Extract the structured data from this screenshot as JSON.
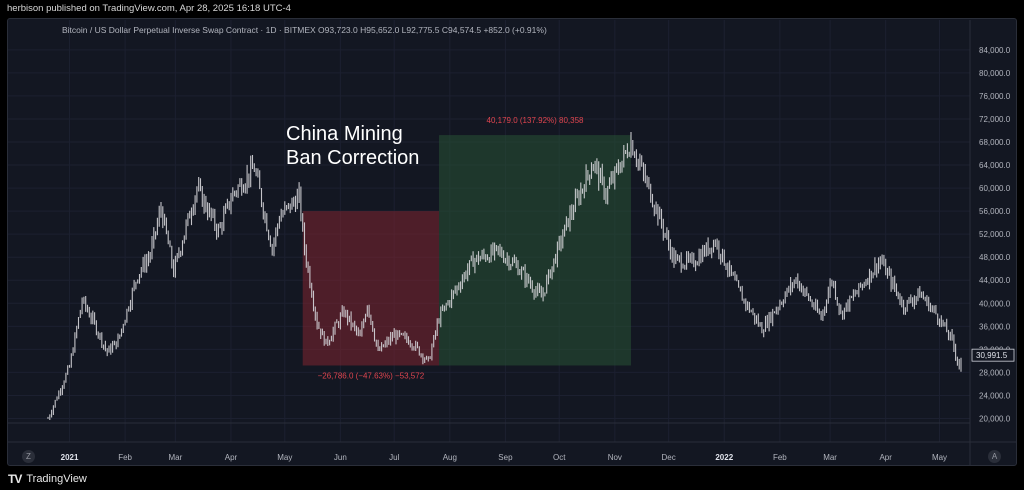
{
  "header": {
    "published_text": "herbison published on TradingView.com, Apr 28, 2025 16:18 UTC-4"
  },
  "legend": {
    "text": "Bitcoin / US Dollar Perpetual Inverse Swap Contract · 1D · BITMEX  O93,723.0  H95,652.0  L92,775.5  C94,574.5  +852.0 (+0.91%)"
  },
  "footer": {
    "brand": "TradingView",
    "logo_mark": "TV",
    "left_button": "Z",
    "right_button": "A"
  },
  "colors": {
    "background": "#131722",
    "candle": "#d4d4d8",
    "bear_zone": "rgba(128,36,48,0.55)",
    "bull_zone": "rgba(40,82,52,0.55)",
    "zone_label": "#e0454f",
    "axis_text": "#b2b5be"
  },
  "chart_data": {
    "type": "line",
    "title": "",
    "annotation": "China Mining\nBan Correction",
    "xlabel": "",
    "ylabel": "",
    "ylim": [
      18000,
      86000
    ],
    "y_ticks": [
      "20,000.0",
      "24,000.0",
      "28,000.0",
      "32,000.0",
      "36,000.0",
      "40,000.0",
      "44,000.0",
      "48,000.0",
      "52,000.0",
      "56,000.0",
      "60,000.0",
      "64,000.0",
      "68,000.0",
      "72,000.0",
      "76,000.0",
      "80,000.0",
      "84,000.0"
    ],
    "x_ticks": [
      {
        "label": "2021",
        "date": "2021-01-01",
        "bold": true
      },
      {
        "label": "Feb",
        "date": "2021-02-01"
      },
      {
        "label": "Mar",
        "date": "2021-03-01"
      },
      {
        "label": "Apr",
        "date": "2021-04-01"
      },
      {
        "label": "May",
        "date": "2021-05-01"
      },
      {
        "label": "Jun",
        "date": "2021-06-01"
      },
      {
        "label": "Jul",
        "date": "2021-07-01"
      },
      {
        "label": "Aug",
        "date": "2021-08-01"
      },
      {
        "label": "Sep",
        "date": "2021-09-01"
      },
      {
        "label": "Oct",
        "date": "2021-10-01"
      },
      {
        "label": "Nov",
        "date": "2021-11-01"
      },
      {
        "label": "Dec",
        "date": "2021-12-01"
      },
      {
        "label": "2022",
        "date": "2022-01-01",
        "bold": true
      },
      {
        "label": "Feb",
        "date": "2022-02-01"
      },
      {
        "label": "Mar",
        "date": "2022-03-01"
      },
      {
        "label": "Apr",
        "date": "2022-04-01"
      },
      {
        "label": "May",
        "date": "2022-05-01"
      }
    ],
    "x_range": [
      "2020-12-20",
      "2022-05-18"
    ],
    "last_price_label": "30,991.5",
    "series": [
      {
        "points": [
          [
            "2020-12-20",
            20000
          ],
          [
            "2021-01-01",
            29000
          ],
          [
            "2021-01-08",
            40500
          ],
          [
            "2021-01-14",
            37000
          ],
          [
            "2021-01-22",
            31500
          ],
          [
            "2021-01-28",
            33500
          ],
          [
            "2021-02-08",
            45000
          ],
          [
            "2021-02-15",
            48500
          ],
          [
            "2021-02-21",
            56500
          ],
          [
            "2021-02-28",
            45500
          ],
          [
            "2021-03-13",
            60000
          ],
          [
            "2021-03-25",
            52500
          ],
          [
            "2021-04-02",
            59000
          ],
          [
            "2021-04-14",
            63500
          ],
          [
            "2021-04-24",
            49500
          ],
          [
            "2021-04-28",
            55000
          ],
          [
            "2021-05-09",
            58500
          ],
          [
            "2021-05-12",
            49500
          ],
          [
            "2021-05-19",
            36500
          ],
          [
            "2021-05-24",
            33000
          ],
          [
            "2021-06-03",
            38500
          ],
          [
            "2021-06-12",
            34000
          ],
          [
            "2021-06-16",
            40000
          ],
          [
            "2021-06-22",
            31500
          ],
          [
            "2021-07-01",
            34500
          ],
          [
            "2021-07-10",
            33500
          ],
          [
            "2021-07-20",
            29800
          ],
          [
            "2021-07-26",
            37500
          ],
          [
            "2021-08-14",
            47500
          ],
          [
            "2021-08-28",
            49000
          ],
          [
            "2021-09-07",
            46500
          ],
          [
            "2021-09-21",
            41000
          ],
          [
            "2021-10-06",
            54500
          ],
          [
            "2021-10-20",
            64500
          ],
          [
            "2021-10-27",
            59000
          ],
          [
            "2021-11-10",
            68000
          ],
          [
            "2021-11-24",
            56500
          ],
          [
            "2021-12-04",
            47500
          ],
          [
            "2021-12-14",
            47000
          ],
          [
            "2021-12-27",
            50800
          ],
          [
            "2022-01-10",
            41500
          ],
          [
            "2022-01-22",
            35500
          ],
          [
            "2022-02-10",
            44200
          ],
          [
            "2022-02-24",
            37500
          ],
          [
            "2022-03-02",
            44200
          ],
          [
            "2022-03-07",
            38200
          ],
          [
            "2022-03-29",
            47500
          ],
          [
            "2022-04-11",
            39500
          ],
          [
            "2022-04-20",
            41700
          ],
          [
            "2022-04-30",
            37800
          ],
          [
            "2022-05-08",
            33500
          ],
          [
            "2022-05-12",
            29000
          ],
          [
            "2022-05-14",
            30991.5
          ]
        ]
      }
    ],
    "zones": [
      {
        "type": "bear",
        "start": "2021-05-11",
        "end": "2021-07-26",
        "top": 56000,
        "bottom": 29200,
        "label": "−26,786.0 (−47.63%) −53,572"
      },
      {
        "type": "bull",
        "start": "2021-07-26",
        "end": "2021-11-10",
        "top": 69200,
        "bottom": 29200,
        "label": "40,179.0 (137.92%) 80,358"
      }
    ]
  }
}
